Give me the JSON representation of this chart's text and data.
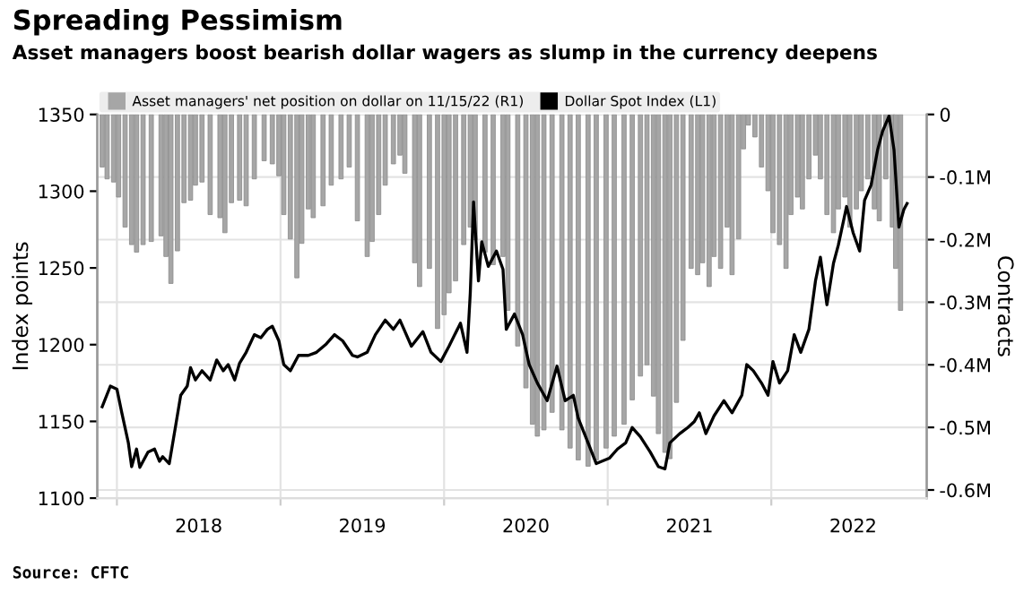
{
  "chart_data": {
    "type": "bar",
    "title": "Spreading Pessimism",
    "subtitle": "Asset managers boost bearish dollar wagers as slump in the currency deepens",
    "ylabel": "Index points",
    "y2label": "Contracts",
    "annotations": [
      "Source: CFTC"
    ],
    "xlim": [
      2017.88,
      2022.95
    ],
    "xticks": [
      {
        "value": 2018,
        "label": null
      },
      {
        "value": 2018.5,
        "label": "2018"
      },
      {
        "value": 2019,
        "label": null
      },
      {
        "value": 2019.5,
        "label": "2019"
      },
      {
        "value": 2020,
        "label": null
      },
      {
        "value": 2020.5,
        "label": "2020"
      },
      {
        "value": 2021,
        "label": null
      },
      {
        "value": 2021.5,
        "label": "2021"
      },
      {
        "value": 2022,
        "label": null
      },
      {
        "value": 2022.5,
        "label": "2022"
      }
    ],
    "ylim": [
      1100,
      1350
    ],
    "yticks": [
      1100,
      1150,
      1200,
      1250,
      1300,
      1350
    ],
    "y2lim": [
      -0.613,
      0
    ],
    "y2ticks": [
      {
        "value": -0.6,
        "label": "-0.6M"
      },
      {
        "value": -0.5,
        "label": "-0.5M"
      },
      {
        "value": -0.4,
        "label": "-0.4M"
      },
      {
        "value": -0.3,
        "label": "-0.3M"
      },
      {
        "value": -0.2,
        "label": "-0.2M"
      },
      {
        "value": -0.1,
        "label": "-0.1M"
      },
      0
    ],
    "grid": true,
    "legend": "top left",
    "series": [
      {
        "name": "Asset managers' net position on dollar on 11/15/22 (R1)",
        "axis": "y2",
        "color": "#a6a6a6",
        "x": [
          2017.91,
          2017.94,
          2017.98,
          2018.01,
          2018.05,
          2018.09,
          2018.12,
          2018.16,
          2018.21,
          2018.27,
          2018.3,
          2018.33,
          2018.37,
          2018.41,
          2018.45,
          2018.48,
          2018.52,
          2018.57,
          2018.63,
          2018.66,
          2018.7,
          2018.75,
          2018.79,
          2018.84,
          2018.9,
          2018.95,
          2018.99,
          2019.02,
          2019.06,
          2019.1,
          2019.13,
          2019.17,
          2019.2,
          2019.26,
          2019.31,
          2019.37,
          2019.42,
          2019.47,
          2019.53,
          2019.56,
          2019.6,
          2019.64,
          2019.69,
          2019.73,
          2019.76,
          2019.82,
          2019.85,
          2019.91,
          2019.96,
          2020.0,
          2020.03,
          2020.07,
          2020.12,
          2020.16,
          2020.19,
          2020.25,
          2020.3,
          2020.36,
          2020.39,
          2020.45,
          2020.5,
          2020.54,
          2020.57,
          2020.61,
          2020.66,
          2020.72,
          2020.77,
          2020.82,
          2020.88,
          2020.93,
          2020.99,
          2021.04,
          2021.1,
          2021.15,
          2021.2,
          2021.24,
          2021.28,
          2021.31,
          2021.35,
          2021.38,
          2021.42,
          2021.46,
          2021.51,
          2021.55,
          2021.58,
          2021.62,
          2021.65,
          2021.69,
          2021.73,
          2021.76,
          2021.8,
          2021.83,
          2021.86,
          2021.9,
          2021.94,
          2021.98,
          2022.01,
          2022.05,
          2022.09,
          2022.12,
          2022.16,
          2022.19,
          2022.23,
          2022.27,
          2022.3,
          2022.34,
          2022.38,
          2022.41,
          2022.45,
          2022.48,
          2022.52,
          2022.55,
          2022.59,
          2022.63,
          2022.66,
          2022.7,
          2022.74,
          2022.76,
          2022.79
        ],
        "values": [
          -0.084,
          -0.103,
          -0.108,
          -0.132,
          -0.18,
          -0.208,
          -0.22,
          -0.208,
          -0.203,
          -0.194,
          -0.227,
          -0.27,
          -0.218,
          -0.141,
          -0.137,
          -0.113,
          -0.108,
          -0.16,
          -0.165,
          -0.189,
          -0.141,
          -0.137,
          -0.146,
          -0.103,
          -0.074,
          -0.079,
          -0.098,
          -0.16,
          -0.199,
          -0.261,
          -0.206,
          -0.151,
          -0.165,
          -0.146,
          -0.113,
          -0.103,
          -0.084,
          -0.17,
          -0.227,
          -0.203,
          -0.16,
          -0.113,
          -0.079,
          -0.065,
          -0.094,
          -0.237,
          -0.275,
          -0.246,
          -0.342,
          -0.32,
          -0.285,
          -0.266,
          -0.208,
          -0.18,
          -0.2,
          -0.22,
          -0.24,
          -0.227,
          -0.313,
          -0.37,
          -0.437,
          -0.495,
          -0.514,
          -0.504,
          -0.476,
          -0.504,
          -0.533,
          -0.552,
          -0.562,
          -0.552,
          -0.533,
          -0.514,
          -0.495,
          -0.456,
          -0.418,
          -0.4,
          -0.45,
          -0.51,
          -0.54,
          -0.55,
          -0.46,
          -0.361,
          -0.246,
          -0.256,
          -0.237,
          -0.275,
          -0.227,
          -0.246,
          -0.18,
          -0.256,
          -0.199,
          -0.055,
          -0.017,
          -0.036,
          -0.084,
          -0.122,
          -0.189,
          -0.208,
          -0.246,
          -0.16,
          -0.132,
          -0.151,
          -0.103,
          -0.065,
          -0.103,
          -0.16,
          -0.189,
          -0.151,
          -0.132,
          -0.18,
          -0.151,
          -0.122,
          -0.103,
          -0.151,
          -0.17,
          -0.103,
          -0.18,
          -0.246,
          -0.313
        ]
      },
      {
        "name": "Dollar Spot Index (L1)",
        "type": "line",
        "color": "#000000",
        "x": [
          2017.91,
          2017.96,
          2018.0,
          2018.03,
          2018.07,
          2018.09,
          2018.12,
          2018.14,
          2018.19,
          2018.23,
          2018.26,
          2018.28,
          2018.32,
          2018.36,
          2018.39,
          2018.43,
          2018.45,
          2018.48,
          2018.52,
          2018.57,
          2018.61,
          2018.65,
          2018.68,
          2018.72,
          2018.75,
          2018.79,
          2018.84,
          2018.88,
          2018.92,
          2018.95,
          2018.99,
          2019.02,
          2019.06,
          2019.11,
          2019.17,
          2019.22,
          2019.28,
          2019.33,
          2019.38,
          2019.44,
          2019.47,
          2019.53,
          2019.58,
          2019.64,
          2019.69,
          2019.73,
          2019.8,
          2019.87,
          2019.92,
          2019.98,
          2020.03,
          2020.1,
          2020.14,
          2020.16,
          2020.18,
          2020.21,
          2020.23,
          2020.27,
          2020.32,
          2020.36,
          2020.38,
          2020.43,
          2020.48,
          2020.52,
          2020.57,
          2020.63,
          2020.69,
          2020.74,
          2020.79,
          2020.82,
          2020.88,
          2020.93,
          2021.01,
          2021.06,
          2021.11,
          2021.15,
          2021.2,
          2021.26,
          2021.31,
          2021.35,
          2021.38,
          2021.44,
          2021.49,
          2021.53,
          2021.56,
          2021.6,
          2021.65,
          2021.71,
          2021.76,
          2021.82,
          2021.85,
          2021.89,
          2021.94,
          2021.98,
          2022.01,
          2022.05,
          2022.1,
          2022.14,
          2022.18,
          2022.23,
          2022.27,
          2022.3,
          2022.34,
          2022.38,
          2022.41,
          2022.46,
          2022.5,
          2022.54,
          2022.57,
          2022.61,
          2022.65,
          2022.68,
          2022.72,
          2022.75,
          2022.78,
          2022.81,
          2022.83
        ],
        "values": [
          1159.5,
          1173,
          1171,
          1155.6,
          1136,
          1120.5,
          1132,
          1120,
          1130,
          1132,
          1124,
          1127,
          1122.5,
          1147.8,
          1167,
          1173,
          1185,
          1177,
          1183,
          1177,
          1190,
          1183,
          1187,
          1177,
          1188,
          1195,
          1206.5,
          1204.5,
          1210,
          1212,
          1202.5,
          1187,
          1183,
          1193,
          1193,
          1195,
          1200.5,
          1206.5,
          1202.5,
          1193,
          1192,
          1195,
          1206.5,
          1216,
          1210,
          1216,
          1199,
          1208.5,
          1195,
          1189,
          1199,
          1214,
          1195,
          1233.7,
          1293,
          1241.5,
          1267,
          1251,
          1261,
          1249,
          1210,
          1220,
          1206.5,
          1187,
          1175,
          1163.5,
          1186,
          1163.5,
          1167,
          1152,
          1136,
          1122.5,
          1126,
          1132,
          1136,
          1146,
          1140,
          1130,
          1120.5,
          1119,
          1136,
          1142,
          1146,
          1150,
          1155.6,
          1142,
          1153.6,
          1163.5,
          1155.6,
          1167,
          1187,
          1183,
          1175,
          1167,
          1189,
          1175,
          1183,
          1206.5,
          1195,
          1210,
          1241.5,
          1257,
          1226,
          1253,
          1265,
          1290,
          1273,
          1261,
          1294,
          1304,
          1327,
          1339,
          1349,
          1327,
          1276.6,
          1288,
          1292
        ]
      }
    ]
  }
}
